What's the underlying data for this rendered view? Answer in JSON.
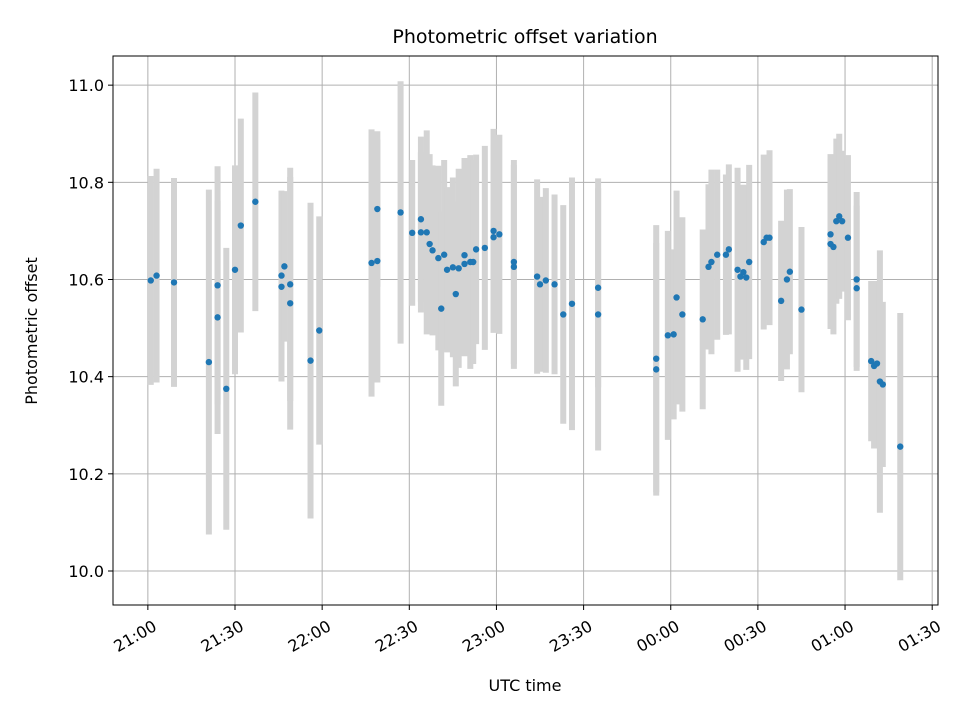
{
  "chart_data": {
    "type": "scatter",
    "title": "Photometric offset variation",
    "xlabel": "UTC time",
    "ylabel": "Photometric offset",
    "grid": true,
    "x_ticks": [
      "21:00",
      "21:30",
      "22:00",
      "22:30",
      "23:00",
      "23:30",
      "00:00",
      "00:30",
      "01:00",
      "01:30"
    ],
    "y_ticks": [
      "10.0",
      "10.2",
      "10.4",
      "10.6",
      "10.8",
      "11.0"
    ],
    "xlim": [
      "20:48",
      "01:32"
    ],
    "ylim": [
      9.93,
      11.06
    ],
    "colors": {
      "point": "#1f77b4",
      "errorbar": "#d3d3d3",
      "grid": "#b0b0b0"
    },
    "points": [
      {
        "t": "21:01",
        "y": 10.598,
        "err": 0.215
      },
      {
        "t": "21:03",
        "y": 10.608,
        "err": 0.22
      },
      {
        "t": "21:09",
        "y": 10.594,
        "err": 0.215
      },
      {
        "t": "21:21",
        "y": 10.43,
        "err": 0.355
      },
      {
        "t": "21:24",
        "y": 10.522,
        "err": 0.24
      },
      {
        "t": "21:24",
        "y": 10.588,
        "err": 0.245
      },
      {
        "t": "21:27",
        "y": 10.375,
        "err": 0.29
      },
      {
        "t": "21:30",
        "y": 10.62,
        "err": 0.215
      },
      {
        "t": "21:32",
        "y": 10.711,
        "err": 0.22
      },
      {
        "t": "21:37",
        "y": 10.76,
        "err": 0.225
      },
      {
        "t": "21:46",
        "y": 10.585,
        "err": 0.195
      },
      {
        "t": "21:46",
        "y": 10.608,
        "err": 0.175
      },
      {
        "t": "21:47",
        "y": 10.627,
        "err": 0.155
      },
      {
        "t": "21:49",
        "y": 10.59,
        "err": 0.24
      },
      {
        "t": "21:49",
        "y": 10.551,
        "err": 0.26
      },
      {
        "t": "21:56",
        "y": 10.433,
        "err": 0.325
      },
      {
        "t": "21:59",
        "y": 10.495,
        "err": 0.235
      },
      {
        "t": "22:17",
        "y": 10.634,
        "err": 0.275
      },
      {
        "t": "22:19",
        "y": 10.638,
        "err": 0.25
      },
      {
        "t": "22:19",
        "y": 10.745,
        "err": 0.16
      },
      {
        "t": "22:27",
        "y": 10.738,
        "err": 0.27
      },
      {
        "t": "22:31",
        "y": 10.696,
        "err": 0.15
      },
      {
        "t": "22:34",
        "y": 10.724,
        "err": 0.17
      },
      {
        "t": "22:34",
        "y": 10.697,
        "err": 0.165
      },
      {
        "t": "22:36",
        "y": 10.697,
        "err": 0.21
      },
      {
        "t": "22:37",
        "y": 10.673,
        "err": 0.185
      },
      {
        "t": "22:38",
        "y": 10.66,
        "err": 0.175
      },
      {
        "t": "22:40",
        "y": 10.644,
        "err": 0.19
      },
      {
        "t": "22:41",
        "y": 10.54,
        "err": 0.2
      },
      {
        "t": "22:42",
        "y": 10.651,
        "err": 0.195
      },
      {
        "t": "22:43",
        "y": 10.62,
        "err": 0.17
      },
      {
        "t": "22:45",
        "y": 10.625,
        "err": 0.185
      },
      {
        "t": "22:46",
        "y": 10.57,
        "err": 0.19
      },
      {
        "t": "22:47",
        "y": 10.623,
        "err": 0.205
      },
      {
        "t": "22:49",
        "y": 10.632,
        "err": 0.19
      },
      {
        "t": "22:49",
        "y": 10.65,
        "err": 0.2
      },
      {
        "t": "22:51",
        "y": 10.636,
        "err": 0.22
      },
      {
        "t": "22:52",
        "y": 10.636,
        "err": 0.21
      },
      {
        "t": "22:53",
        "y": 10.662,
        "err": 0.195
      },
      {
        "t": "22:56",
        "y": 10.665,
        "err": 0.21
      },
      {
        "t": "22:59",
        "y": 10.687,
        "err": 0.19
      },
      {
        "t": "22:59",
        "y": 10.7,
        "err": 0.21
      },
      {
        "t": "23:01",
        "y": 10.693,
        "err": 0.205
      },
      {
        "t": "23:06",
        "y": 10.626,
        "err": 0.21
      },
      {
        "t": "23:06",
        "y": 10.636,
        "err": 0.21
      },
      {
        "t": "23:14",
        "y": 10.606,
        "err": 0.2
      },
      {
        "t": "23:15",
        "y": 10.59,
        "err": 0.18
      },
      {
        "t": "23:17",
        "y": 10.598,
        "err": 0.19
      },
      {
        "t": "23:20",
        "y": 10.59,
        "err": 0.185
      },
      {
        "t": "23:23",
        "y": 10.528,
        "err": 0.225
      },
      {
        "t": "23:26",
        "y": 10.55,
        "err": 0.26
      },
      {
        "t": "23:35",
        "y": 10.583,
        "err": 0.205
      },
      {
        "t": "23:35",
        "y": 10.528,
        "err": 0.28
      },
      {
        "t": "23:55",
        "y": 10.437,
        "err": 0.275
      },
      {
        "t": "23:55",
        "y": 10.415,
        "err": 0.26
      },
      {
        "t": "23:59",
        "y": 10.485,
        "err": 0.215
      },
      {
        "t": "00:01",
        "y": 10.487,
        "err": 0.175
      },
      {
        "t": "00:02",
        "y": 10.563,
        "err": 0.22
      },
      {
        "t": "00:04",
        "y": 10.528,
        "err": 0.2
      },
      {
        "t": "00:11",
        "y": 10.518,
        "err": 0.185
      },
      {
        "t": "00:13",
        "y": 10.626,
        "err": 0.17
      },
      {
        "t": "00:14",
        "y": 10.636,
        "err": 0.19
      },
      {
        "t": "00:16",
        "y": 10.651,
        "err": 0.175
      },
      {
        "t": "00:19",
        "y": 10.651,
        "err": 0.165
      },
      {
        "t": "00:20",
        "y": 10.662,
        "err": 0.175
      },
      {
        "t": "00:23",
        "y": 10.62,
        "err": 0.21
      },
      {
        "t": "00:24",
        "y": 10.606,
        "err": 0.155
      },
      {
        "t": "00:25",
        "y": 10.615,
        "err": 0.18
      },
      {
        "t": "00:26",
        "y": 10.604,
        "err": 0.19
      },
      {
        "t": "00:27",
        "y": 10.636,
        "err": 0.2
      },
      {
        "t": "00:32",
        "y": 10.677,
        "err": 0.18
      },
      {
        "t": "00:33",
        "y": 10.686,
        "err": 0.17
      },
      {
        "t": "00:34",
        "y": 10.686,
        "err": 0.18
      },
      {
        "t": "00:38",
        "y": 10.556,
        "err": 0.165
      },
      {
        "t": "00:40",
        "y": 10.6,
        "err": 0.185
      },
      {
        "t": "00:41",
        "y": 10.616,
        "err": 0.17
      },
      {
        "t": "00:45",
        "y": 10.538,
        "err": 0.17
      },
      {
        "t": "00:55",
        "y": 10.693,
        "err": 0.165
      },
      {
        "t": "00:55",
        "y": 10.673,
        "err": 0.175
      },
      {
        "t": "00:56",
        "y": 10.667,
        "err": 0.18
      },
      {
        "t": "00:57",
        "y": 10.72,
        "err": 0.17
      },
      {
        "t": "00:58",
        "y": 10.73,
        "err": 0.17
      },
      {
        "t": "00:59",
        "y": 10.72,
        "err": 0.145
      },
      {
        "t": "01:01",
        "y": 10.686,
        "err": 0.17
      },
      {
        "t": "01:04",
        "y": 10.6,
        "err": 0.18
      },
      {
        "t": "01:04",
        "y": 10.582,
        "err": 0.17
      },
      {
        "t": "01:09",
        "y": 10.432,
        "err": 0.165
      },
      {
        "t": "01:10",
        "y": 10.422,
        "err": 0.17
      },
      {
        "t": "01:11",
        "y": 10.427,
        "err": 0.17
      },
      {
        "t": "01:12",
        "y": 10.39,
        "err": 0.27
      },
      {
        "t": "01:13",
        "y": 10.384,
        "err": 0.17
      },
      {
        "t": "01:19",
        "y": 10.256,
        "err": 0.275
      }
    ]
  }
}
